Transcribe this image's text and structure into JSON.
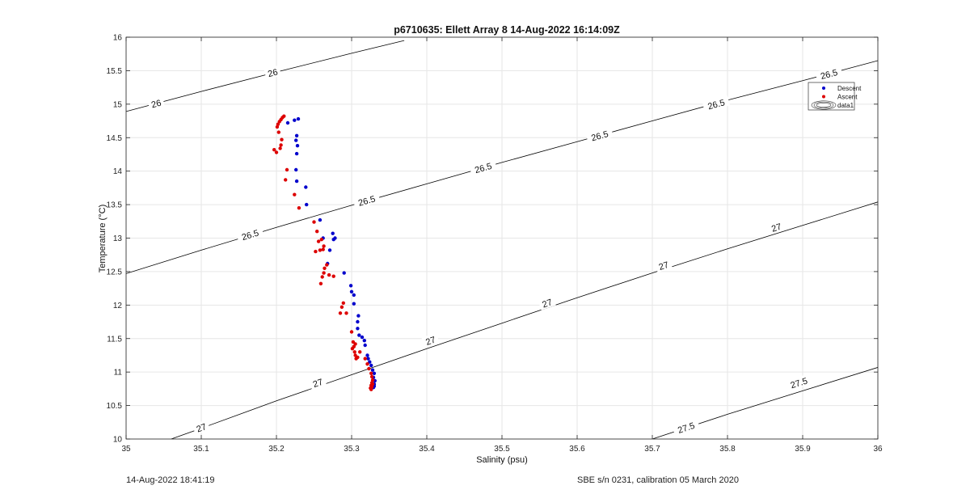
{
  "chart_data": {
    "type": "scatter",
    "title": "p6710635: Ellett Array 8 14-Aug-2022 16:14:09Z",
    "xlabel": "Salinity (psu)",
    "ylabel": "Temperature (°C)",
    "xlim": [
      35,
      36
    ],
    "ylim": [
      10,
      16
    ],
    "xticks": [
      35,
      35.1,
      35.2,
      35.3,
      35.4,
      35.5,
      35.6,
      35.7,
      35.8,
      35.9,
      36
    ],
    "xtick_labels": [
      "35",
      "35.1",
      "35.2",
      "35.3",
      "35.4",
      "35.5",
      "35.6",
      "35.7",
      "35.8",
      "35.9",
      "36"
    ],
    "yticks": [
      10,
      10.5,
      11,
      11.5,
      12,
      12.5,
      13,
      13.5,
      14,
      14.5,
      15,
      15.5,
      16
    ],
    "ytick_labels": [
      "10",
      "10.5",
      "11",
      "11.5",
      "12",
      "12.5",
      "13",
      "13.5",
      "14",
      "14.5",
      "15",
      "15.5",
      "16"
    ],
    "grid": true,
    "legend_position": "top-right",
    "colors": {
      "descent": "#0000cc",
      "ascent": "#dd0000",
      "contour": "#000000",
      "grid": "#e6e6e6"
    },
    "series": [
      {
        "name": "Descent",
        "marker": "dot",
        "x": [
          35.229,
          35.224,
          35.215,
          35.227,
          35.226,
          35.228,
          35.227,
          35.226,
          35.227,
          35.239,
          35.24,
          35.258,
          35.262,
          35.275,
          35.278,
          35.276,
          35.271,
          35.268,
          35.29,
          35.299,
          35.3,
          35.303,
          35.303,
          35.309,
          35.308,
          35.308,
          35.31,
          35.314,
          35.317,
          35.318,
          35.321,
          35.322,
          35.324,
          35.326,
          35.328,
          35.33,
          35.329,
          35.331,
          35.33,
          35.329,
          35.33
        ],
        "y": [
          14.78,
          14.76,
          14.72,
          14.53,
          14.46,
          14.38,
          14.26,
          14.02,
          13.85,
          13.76,
          13.5,
          13.27,
          13.0,
          13.07,
          13.0,
          12.98,
          12.82,
          12.62,
          12.48,
          12.29,
          12.2,
          12.15,
          12.02,
          11.84,
          11.75,
          11.65,
          11.55,
          11.52,
          11.47,
          11.4,
          11.25,
          11.2,
          11.15,
          11.1,
          11.03,
          10.98,
          10.92,
          10.87,
          10.82,
          10.77,
          10.79
        ]
      },
      {
        "name": "Ascent",
        "marker": "dot",
        "x": [
          35.21,
          35.208,
          35.206,
          35.204,
          35.202,
          35.201,
          35.203,
          35.207,
          35.206,
          35.205,
          35.2,
          35.197,
          35.214,
          35.212,
          35.224,
          35.23,
          35.25,
          35.254,
          35.256,
          35.26,
          35.263,
          35.258,
          35.252,
          35.262,
          35.267,
          35.264,
          35.263,
          35.261,
          35.259,
          35.27,
          35.276,
          35.289,
          35.287,
          35.285,
          35.293,
          35.3,
          35.302,
          35.305,
          35.303,
          35.301,
          35.304,
          35.305,
          35.306,
          35.308,
          35.311,
          35.318,
          35.321,
          35.323,
          35.326,
          35.327,
          35.328,
          35.327,
          35.326,
          35.325,
          35.326,
          35.327,
          35.328
        ],
        "y": [
          14.82,
          14.8,
          14.77,
          14.74,
          14.7,
          14.66,
          14.58,
          14.47,
          14.39,
          14.34,
          14.28,
          14.32,
          14.02,
          13.87,
          13.65,
          13.45,
          13.24,
          13.1,
          12.95,
          12.98,
          12.88,
          12.82,
          12.8,
          12.83,
          12.6,
          12.55,
          12.48,
          12.42,
          12.32,
          12.45,
          12.43,
          12.03,
          11.97,
          11.88,
          11.88,
          11.6,
          11.45,
          11.42,
          11.38,
          11.35,
          11.3,
          11.25,
          11.2,
          11.22,
          11.3,
          11.2,
          11.12,
          11.05,
          10.98,
          10.93,
          10.88,
          10.84,
          10.8,
          10.76,
          10.74,
          10.78,
          10.82
        ]
      }
    ],
    "legend": {
      "entries": [
        {
          "label": "Descent",
          "color": "#0000cc",
          "symbol": "dot"
        },
        {
          "label": "Ascent",
          "color": "#dd0000",
          "symbol": "dot"
        },
        {
          "label": "data1",
          "color": "#333333",
          "symbol": "contour"
        }
      ]
    },
    "contours": [
      {
        "level": "26",
        "points": [
          [
            35,
            14.89
          ],
          [
            35.1,
            15.19
          ],
          [
            35.2,
            15.48
          ],
          [
            35.3,
            15.76
          ],
          [
            35.37,
            15.95
          ]
        ],
        "labels": [
          [
            35.04,
            15.01
          ],
          [
            35.195,
            15.47
          ]
        ]
      },
      {
        "level": "26.5",
        "points": [
          [
            35,
            12.47
          ],
          [
            35.1,
            12.82
          ],
          [
            35.2,
            13.16
          ],
          [
            35.3,
            13.49
          ],
          [
            35.4,
            13.81
          ],
          [
            35.5,
            14.13
          ],
          [
            35.6,
            14.44
          ],
          [
            35.7,
            14.75
          ],
          [
            35.8,
            15.06
          ],
          [
            35.9,
            15.35
          ],
          [
            35.94,
            15.47
          ],
          [
            36,
            15.65
          ]
        ],
        "labels": [
          [
            35.165,
            13.05
          ],
          [
            35.32,
            13.56
          ],
          [
            35.475,
            14.05
          ],
          [
            35.63,
            14.53
          ],
          [
            35.785,
            15.0
          ],
          [
            35.935,
            15.45
          ]
        ]
      },
      {
        "level": "27",
        "points": [
          [
            35.06,
            10.0
          ],
          [
            35.1,
            10.16
          ],
          [
            35.2,
            10.57
          ],
          [
            35.3,
            10.96
          ],
          [
            35.4,
            11.35
          ],
          [
            35.5,
            11.73
          ],
          [
            35.6,
            12.11
          ],
          [
            35.7,
            12.48
          ],
          [
            35.8,
            12.84
          ],
          [
            35.9,
            13.19
          ],
          [
            36,
            13.54
          ]
        ],
        "labels": [
          [
            35.1,
            10.17
          ],
          [
            35.255,
            10.84
          ],
          [
            35.405,
            11.47
          ],
          [
            35.56,
            12.03
          ],
          [
            35.715,
            12.59
          ],
          [
            35.865,
            13.16
          ]
        ]
      },
      {
        "level": "27.5",
        "points": [
          [
            35.7,
            10.0
          ],
          [
            35.8,
            10.37
          ],
          [
            35.9,
            10.72
          ],
          [
            36,
            11.07
          ]
        ],
        "labels": [
          [
            35.745,
            10.17
          ],
          [
            35.895,
            10.84
          ]
        ]
      }
    ]
  },
  "footer": {
    "timestamp": "14-Aug-2022 18:41:19",
    "calibration": "SBE s/n 0231, calibration 05 March 2020"
  }
}
